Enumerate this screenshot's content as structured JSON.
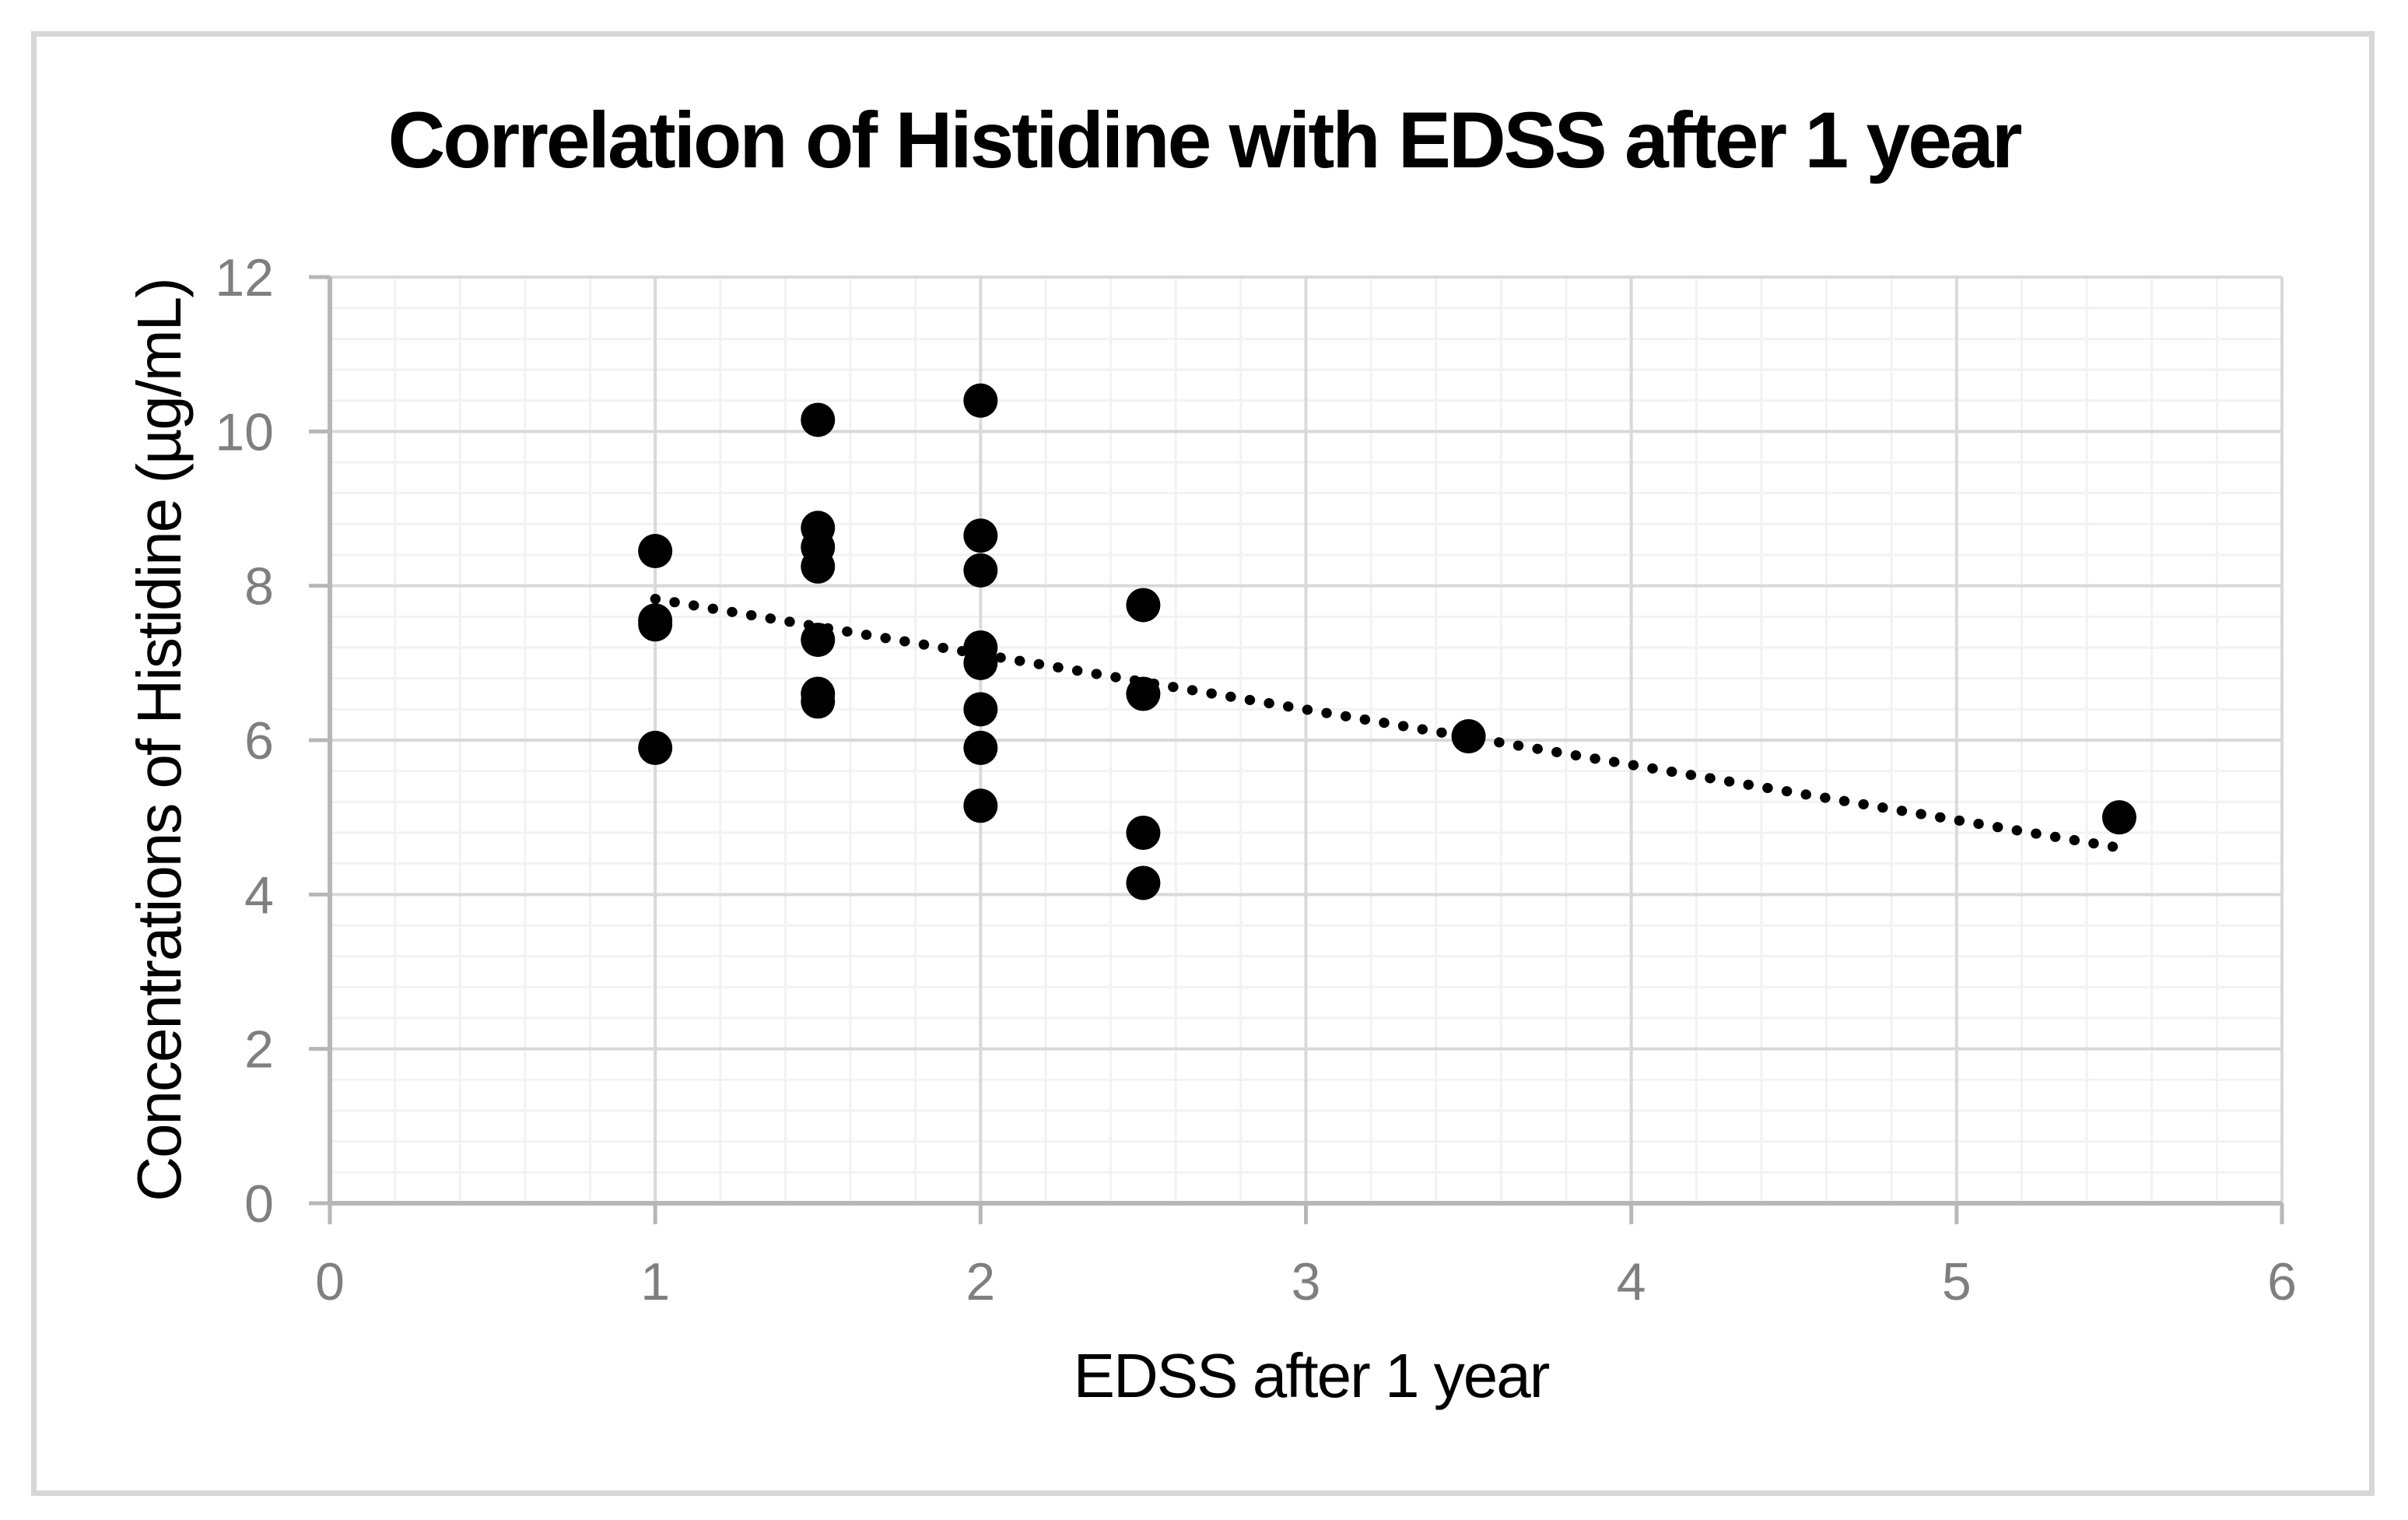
{
  "chart_data": {
    "type": "scatter",
    "title": "Correlation of Histidine with EDSS after 1 year",
    "xlabel": "EDSS after 1 year",
    "ylabel": "Concentrations of Histidine (µg/mL)",
    "xlim": [
      0,
      6
    ],
    "ylim": [
      0,
      12
    ],
    "x_ticks": [
      0,
      1,
      2,
      3,
      4,
      5,
      6
    ],
    "y_ticks": [
      0,
      2,
      4,
      6,
      8,
      10,
      12
    ],
    "x_minor_unit": 0.2,
    "y_minor_unit": 0.4,
    "grid": "major and minor, both axes",
    "legend": "none",
    "series": [
      {
        "name": "Histidine vs EDSS",
        "marker": "filled-circle",
        "points": [
          {
            "x": 1,
            "y": 8.45
          },
          {
            "x": 1,
            "y": 7.55
          },
          {
            "x": 1,
            "y": 7.5
          },
          {
            "x": 1,
            "y": 5.9
          },
          {
            "x": 1.5,
            "y": 10.15
          },
          {
            "x": 1.5,
            "y": 8.75
          },
          {
            "x": 1.5,
            "y": 8.5
          },
          {
            "x": 1.5,
            "y": 8.25
          },
          {
            "x": 1.5,
            "y": 7.3
          },
          {
            "x": 1.5,
            "y": 6.6
          },
          {
            "x": 1.5,
            "y": 6.5
          },
          {
            "x": 2,
            "y": 10.4
          },
          {
            "x": 2,
            "y": 8.65
          },
          {
            "x": 2,
            "y": 8.2
          },
          {
            "x": 2,
            "y": 7.2
          },
          {
            "x": 2,
            "y": 7.0
          },
          {
            "x": 2,
            "y": 6.4
          },
          {
            "x": 2,
            "y": 5.9
          },
          {
            "x": 2,
            "y": 5.15
          },
          {
            "x": 2.5,
            "y": 7.75
          },
          {
            "x": 2.5,
            "y": 6.6
          },
          {
            "x": 2.5,
            "y": 4.8
          },
          {
            "x": 2.5,
            "y": 4.15
          },
          {
            "x": 3.5,
            "y": 6.05
          },
          {
            "x": 5.5,
            "y": 5.0
          }
        ]
      }
    ],
    "trendline": {
      "style": "dotted",
      "x_start": 1.0,
      "y_start": 7.83,
      "x_end": 5.48,
      "y_end": 4.62
    },
    "colors": {
      "point": "#000000",
      "trendline": "#000000",
      "title": "#000000",
      "axis_title": "#000000",
      "tick_label": "#7f7f7f",
      "axis_line": "#b7b7b7",
      "grid_major": "#d9d9d9",
      "grid_minor": "#f2f2f2",
      "frame_border": "#d7d7d7",
      "background": "#ffffff"
    }
  }
}
